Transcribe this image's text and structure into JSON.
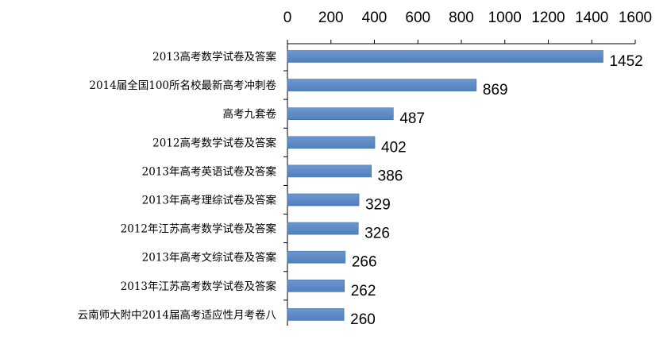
{
  "chart_data": {
    "type": "bar",
    "orientation": "horizontal",
    "categories": [
      "2013高考数学试卷及答案",
      "2014届全国100所名校最新高考冲刺卷",
      "高考九套卷",
      "2012高考数学试卷及答案",
      "2013年高考英语试卷及答案",
      "2013年高考理综试卷及答案",
      "2012年江苏高考数学试卷及答案",
      "2013年高考文综试卷及答案",
      "2013年江苏高考数学试卷及答案",
      "云南师大附中2014届高考适应性月考卷八"
    ],
    "values": [
      1452,
      869,
      487,
      402,
      386,
      329,
      326,
      266,
      262,
      260
    ],
    "xlim": [
      0,
      1600
    ],
    "ticks": [
      0,
      200,
      400,
      600,
      800,
      1000,
      1200,
      1400,
      1600
    ],
    "axis_position": "top",
    "grid": false,
    "legend": "none",
    "bar_color": "#4F81BD"
  }
}
